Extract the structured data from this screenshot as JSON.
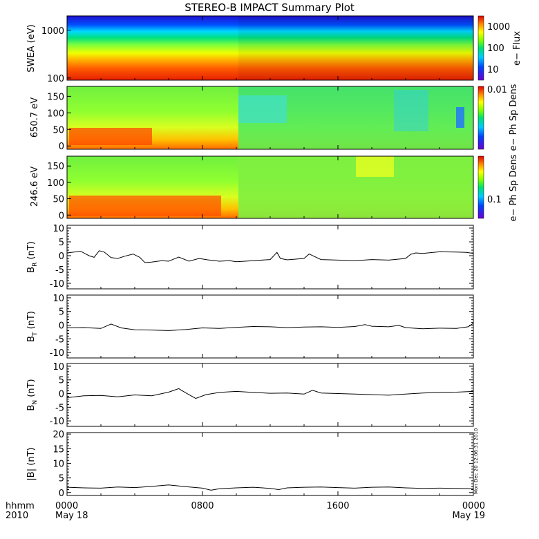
{
  "title": "STEREO-B IMPACT Summary Plot",
  "stamp": "Mon Dec 20 12:06:31 2010",
  "time_axis": {
    "range_hours": [
      0,
      24
    ],
    "row_label_1": "hhmm",
    "row_label_2": "2010",
    "ticks": [
      {
        "h": 0,
        "label": "0000",
        "date": "May 18"
      },
      {
        "h": 8,
        "label": "0800",
        "date": ""
      },
      {
        "h": 16,
        "label": "1600",
        "date": ""
      },
      {
        "h": 24,
        "label": "0000",
        "date": "May 19"
      }
    ]
  },
  "panels": {
    "swea": {
      "ylabel": "SWEA (eV)",
      "yscale": "log",
      "yrange": [
        90,
        2000
      ],
      "ticks": [
        "1000",
        "100"
      ],
      "tick_values": [
        1000,
        100
      ],
      "colorbar": {
        "label": "e− Flux",
        "scale": "log",
        "range": [
          3,
          3000
        ],
        "ticks": [
          "1000",
          "100",
          "10"
        ],
        "tick_values": [
          1000,
          100,
          10
        ]
      }
    },
    "pad650": {
      "ylabel": "650.7 eV",
      "yrange": [
        -10,
        180
      ],
      "ticks": [
        "150",
        "100",
        "50",
        "0"
      ],
      "tick_values": [
        150,
        100,
        50,
        0
      ],
      "colorbar": {
        "label": "e− Ph Sp Dens",
        "tick": "0.01"
      }
    },
    "pad246": {
      "ylabel": "246.6 eV",
      "yrange": [
        -10,
        180
      ],
      "ticks": [
        "150",
        "100",
        "50",
        "0"
      ],
      "tick_values": [
        150,
        100,
        50,
        0
      ],
      "colorbar": {
        "label": "e− Ph Sp Dens",
        "tick": "0.1"
      }
    }
  },
  "chart_data": [
    {
      "type": "line",
      "ylabel": "B",
      "ysub": "R",
      "yunit": " (nT)",
      "ylim": [
        -12,
        11
      ],
      "ticks": [
        "10",
        "5",
        "0",
        "-5",
        "-10"
      ],
      "tick_values": [
        10,
        5,
        0,
        -5,
        -10
      ],
      "x": [
        0,
        0.8,
        1.3,
        1.6,
        1.9,
        2.2,
        2.6,
        3.0,
        3.4,
        3.9,
        4.3,
        4.6,
        5.0,
        5.6,
        6.0,
        6.6,
        7.2,
        7.8,
        8.3,
        9.0,
        9.6,
        10.0,
        11.0,
        12.0,
        12.4,
        12.6,
        13.0,
        14.0,
        14.3,
        15.0,
        16.0,
        17.0,
        18.0,
        19.0,
        20.0,
        20.3,
        20.6,
        21.0,
        22.0,
        23.0,
        23.6,
        24.0
      ],
      "values": [
        1.0,
        1.6,
        0.0,
        -0.6,
        1.8,
        1.3,
        -0.7,
        -1.0,
        -0.2,
        0.6,
        -0.6,
        -2.5,
        -2.3,
        -1.8,
        -2.0,
        -0.5,
        -2.0,
        -1.0,
        -1.5,
        -2.0,
        -1.8,
        -2.2,
        -1.8,
        -1.4,
        1.2,
        -1.0,
        -1.5,
        -1.0,
        0.6,
        -1.4,
        -1.6,
        -1.8,
        -1.4,
        -1.6,
        -1.0,
        0.5,
        1.0,
        0.8,
        1.4,
        1.3,
        1.2,
        0.8
      ]
    },
    {
      "type": "line",
      "ylabel": "B",
      "ysub": "T",
      "yunit": " (nT)",
      "ylim": [
        -12,
        11
      ],
      "ticks": [
        "10",
        "5",
        "0",
        "-5",
        "-10"
      ],
      "tick_values": [
        10,
        5,
        0,
        -5,
        -10
      ],
      "x": [
        0,
        1.0,
        2.0,
        2.6,
        3.2,
        4.0,
        5.0,
        6.0,
        7.0,
        8.0,
        9.0,
        10.0,
        11.0,
        12.0,
        13.0,
        14.0,
        15.0,
        16.0,
        17.0,
        17.6,
        18.0,
        19.0,
        19.6,
        20.0,
        21.0,
        22.0,
        23.0,
        23.7,
        24.0
      ],
      "values": [
        -1.0,
        -0.9,
        -1.2,
        0.4,
        -1.0,
        -1.7,
        -1.8,
        -2.0,
        -1.6,
        -1.0,
        -1.2,
        -0.8,
        -0.5,
        -0.6,
        -0.9,
        -0.7,
        -0.6,
        -0.8,
        -0.5,
        0.2,
        -0.4,
        -0.6,
        -0.1,
        -0.9,
        -1.3,
        -1.1,
        -1.2,
        -0.6,
        0.7
      ]
    },
    {
      "type": "line",
      "ylabel": "B",
      "ysub": "N",
      "yunit": " (nT)",
      "ylim": [
        -12,
        11
      ],
      "ticks": [
        "10",
        "5",
        "0",
        "-5",
        "-10"
      ],
      "tick_values": [
        10,
        5,
        0,
        -5,
        -10
      ],
      "x": [
        0,
        1.0,
        2.0,
        3.0,
        4.0,
        5.0,
        6.0,
        6.6,
        7.0,
        7.6,
        8.2,
        9.0,
        10.0,
        11.0,
        12.0,
        13.0,
        14.0,
        14.5,
        15.0,
        16.0,
        17.0,
        18.0,
        19.0,
        20.0,
        21.0,
        22.0,
        23.0,
        24.0
      ],
      "values": [
        -1.5,
        -0.8,
        -0.7,
        -1.2,
        -0.5,
        -0.8,
        0.5,
        1.8,
        0.3,
        -1.8,
        -0.4,
        0.4,
        0.8,
        0.4,
        0.1,
        0.2,
        -0.2,
        1.2,
        0.2,
        0.0,
        -0.2,
        -0.4,
        -0.6,
        -0.2,
        0.2,
        0.4,
        0.5,
        0.8
      ]
    },
    {
      "type": "line",
      "ylabel": "|B|",
      "ysub": "",
      "yunit": " (nT)",
      "ylim": [
        -1,
        20.5
      ],
      "ticks": [
        "20",
        "15",
        "10",
        "5",
        "0"
      ],
      "tick_values": [
        20,
        15,
        10,
        5,
        0
      ],
      "x": [
        0,
        1.0,
        2.0,
        3.0,
        4.0,
        5.0,
        6.0,
        6.5,
        7.0,
        8.0,
        8.5,
        9.0,
        10.0,
        11.0,
        12.0,
        12.5,
        13.0,
        14.0,
        15.0,
        16.0,
        17.0,
        18.0,
        19.0,
        20.0,
        21.0,
        22.0,
        23.0,
        24.0
      ],
      "values": [
        1.8,
        1.6,
        1.5,
        1.9,
        1.7,
        2.1,
        2.6,
        2.3,
        2.0,
        1.5,
        0.8,
        1.3,
        1.6,
        1.8,
        1.4,
        1.0,
        1.6,
        1.8,
        1.9,
        1.7,
        1.5,
        1.8,
        1.9,
        1.6,
        1.4,
        1.5,
        1.4,
        1.3
      ]
    }
  ]
}
